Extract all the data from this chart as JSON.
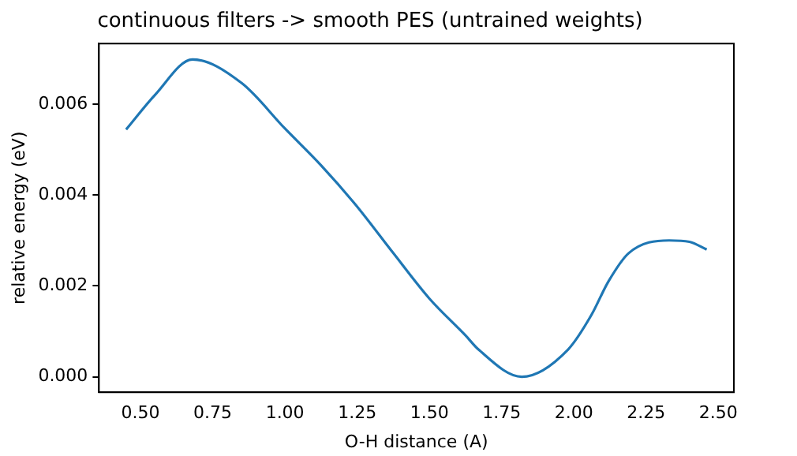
{
  "chart_data": {
    "type": "line",
    "title": "continuous filters -> smooth PES (untrained weights)",
    "xlabel": "O-H distance (A)",
    "ylabel": "relative energy (eV)",
    "x": [
      0.45,
      0.55,
      0.68,
      0.85,
      1.0,
      1.125,
      1.245,
      1.375,
      1.5,
      1.625,
      1.67,
      1.82,
      1.98,
      2.06,
      2.12,
      2.19,
      2.33,
      2.4,
      2.46
    ],
    "series": [
      {
        "color": "#1f77b4",
        "values": [
          0.00544,
          0.0062,
          0.00698,
          0.00646,
          0.00546,
          0.00465,
          0.00378,
          0.00272,
          0.00172,
          0.00091,
          0.0006,
          0.0,
          0.0006,
          0.00135,
          0.0021,
          0.00272,
          0.003,
          0.00297,
          0.0028
        ]
      }
    ],
    "xlim": [
      0.356,
      2.554
    ],
    "ylim": [
      -0.00034,
      0.00733
    ],
    "xticks": [
      {
        "value": 0.5,
        "label": "0.50"
      },
      {
        "value": 0.75,
        "label": "0.75"
      },
      {
        "value": 1.0,
        "label": "1.00"
      },
      {
        "value": 1.25,
        "label": "1.25"
      },
      {
        "value": 1.5,
        "label": "1.50"
      },
      {
        "value": 1.75,
        "label": "1.75"
      },
      {
        "value": 2.0,
        "label": "2.00"
      },
      {
        "value": 2.25,
        "label": "2.25"
      },
      {
        "value": 2.5,
        "label": "2.50"
      }
    ],
    "yticks": [
      {
        "value": 0,
        "label": "0.000"
      },
      {
        "value": 0.002,
        "label": "0.002"
      },
      {
        "value": 0.004,
        "label": "0.004"
      },
      {
        "value": 0.006,
        "label": "0.006"
      }
    ],
    "grid": false,
    "legend": false
  }
}
